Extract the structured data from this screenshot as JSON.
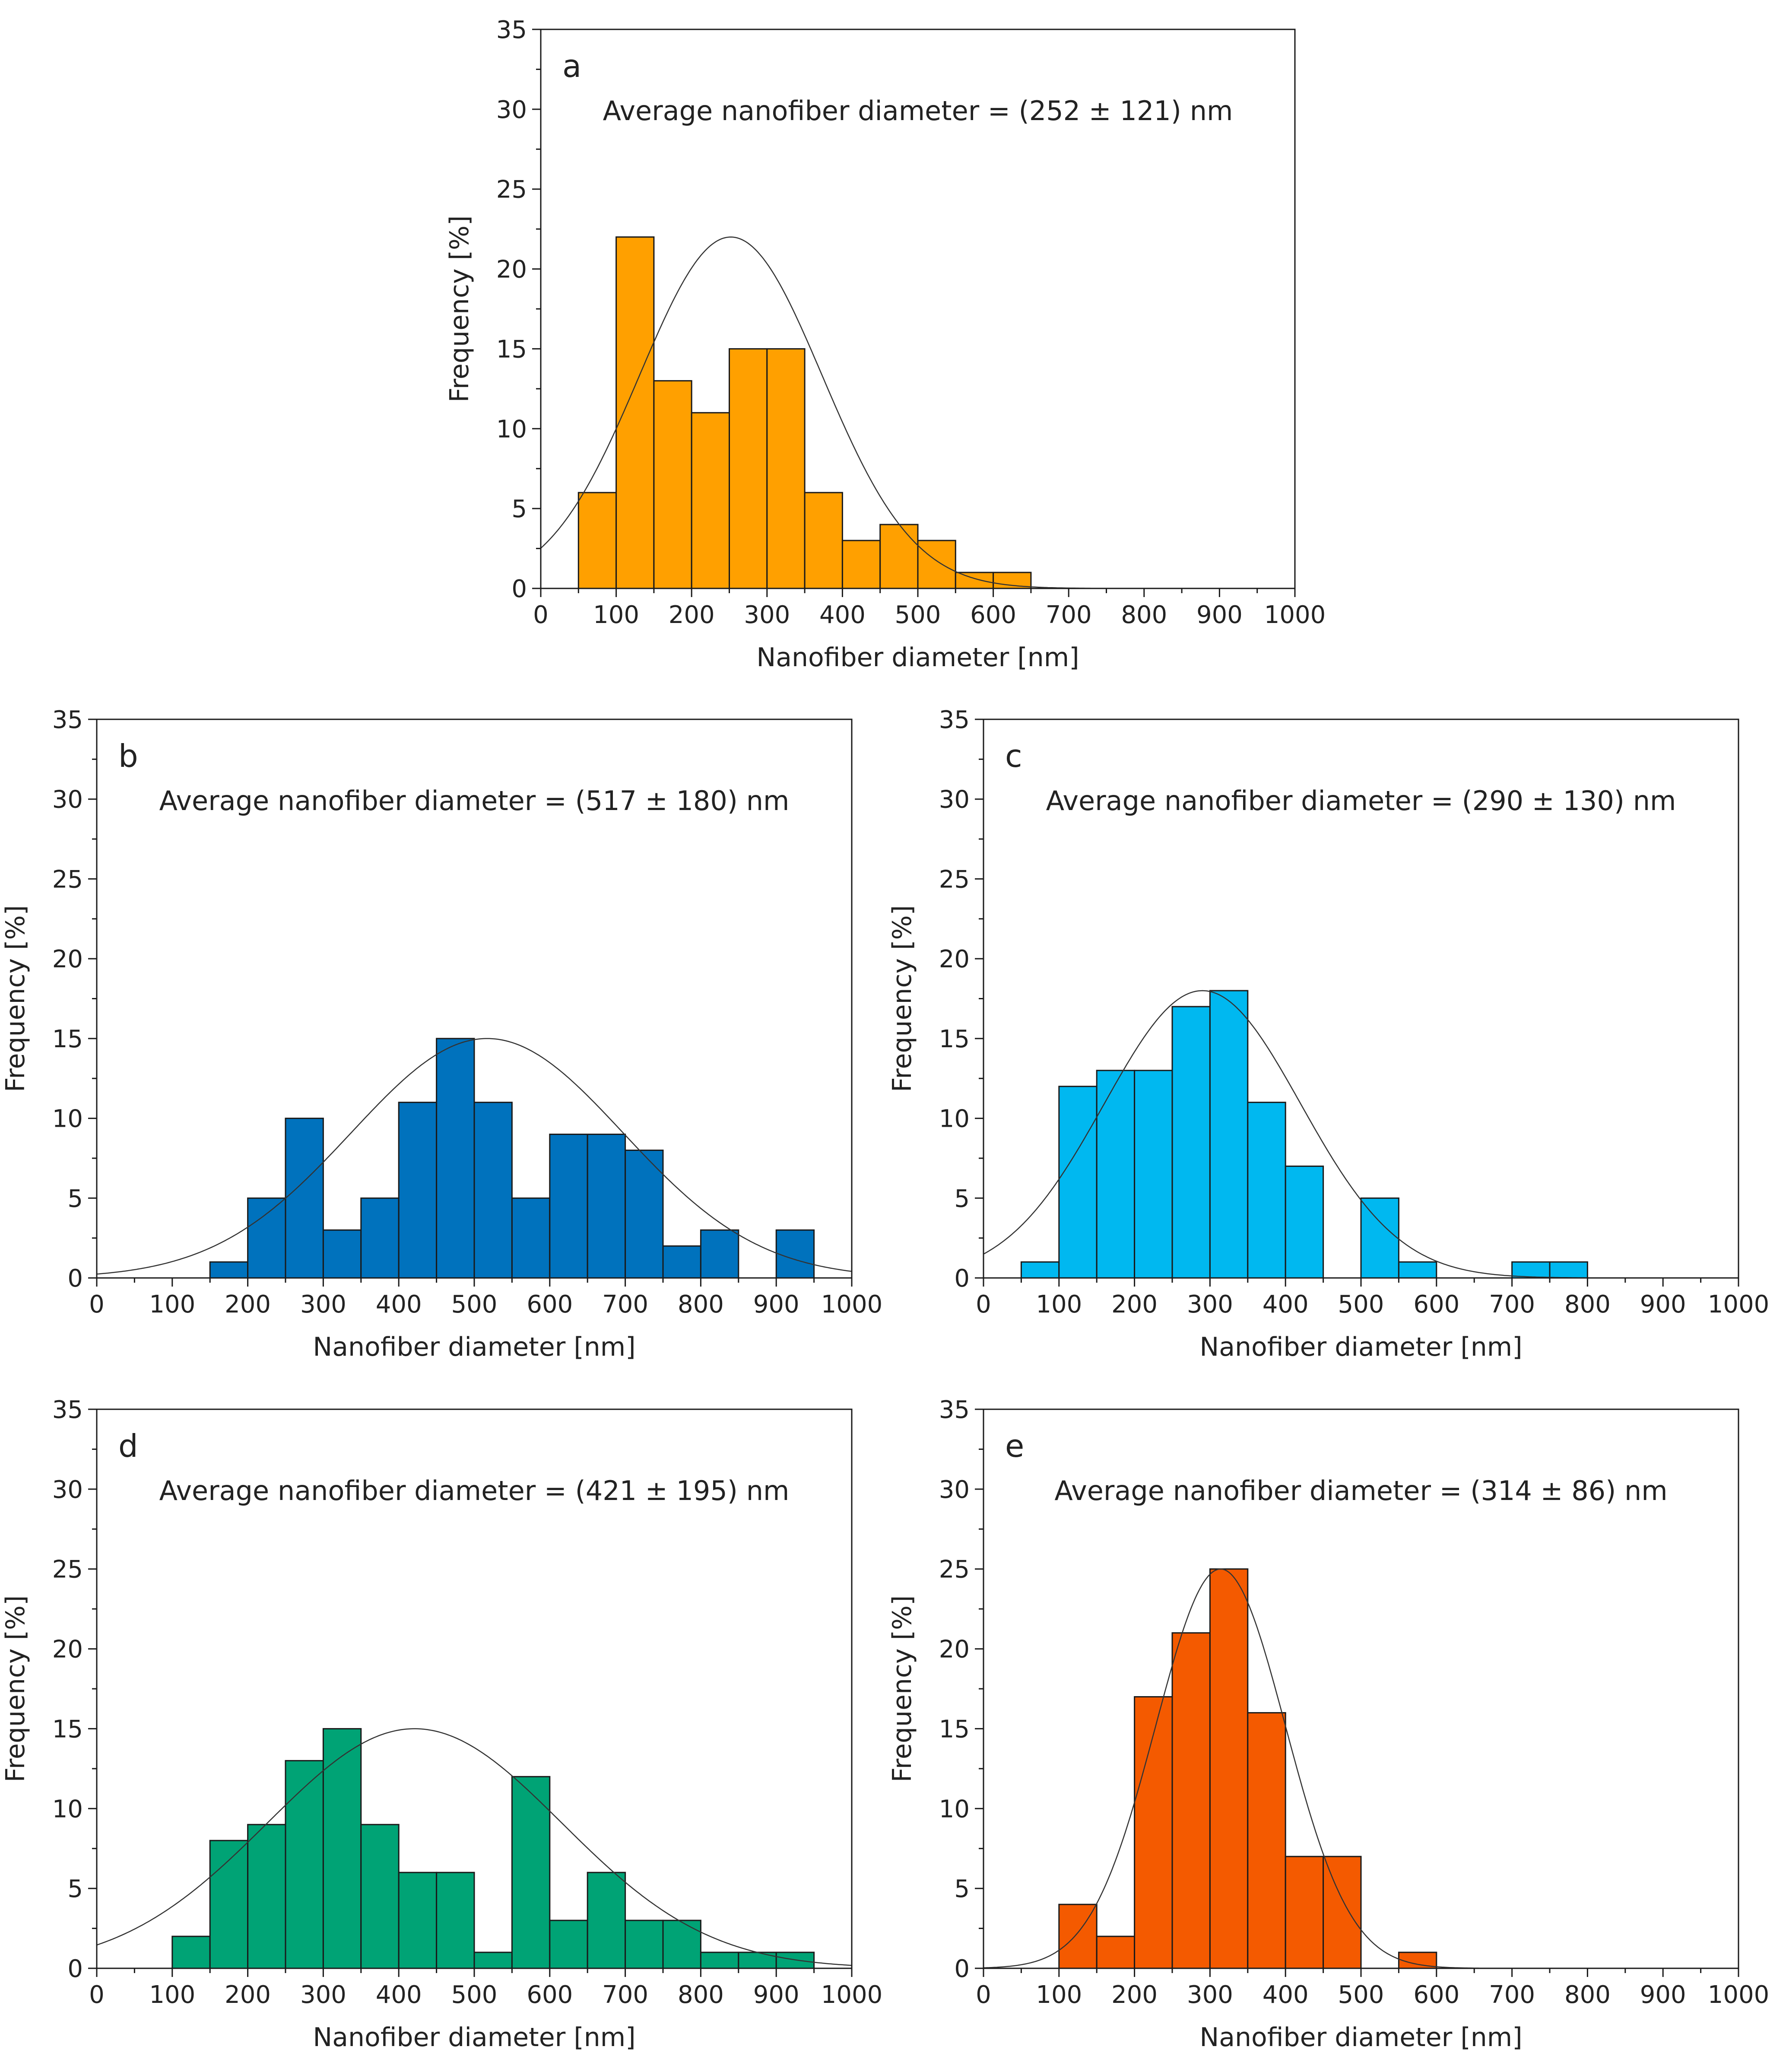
{
  "chart_data": [
    {
      "type": "bar",
      "panel": "a",
      "annotation": "Average nanofiber diameter = (252 ± 121) nm",
      "xlabel": "Nanofiber diameter [nm]",
      "ylabel": "Frequency [%]",
      "xlim": [
        0,
        1000
      ],
      "ylim": [
        0,
        35
      ],
      "xticks": [
        0,
        100,
        200,
        300,
        400,
        500,
        600,
        700,
        800,
        900,
        1000
      ],
      "yticks": [
        0,
        5,
        10,
        15,
        20,
        25,
        30,
        35
      ],
      "bin_width": 50,
      "bin_starts": [
        50,
        100,
        150,
        200,
        250,
        300,
        350,
        400,
        450,
        500,
        550,
        600
      ],
      "values": [
        6,
        22,
        13,
        11,
        15,
        15,
        6,
        3,
        4,
        3,
        1,
        1
      ],
      "color": "#FFA000",
      "fit": {
        "mean": 252,
        "sd": 121,
        "peak": 22
      }
    },
    {
      "type": "bar",
      "panel": "b",
      "annotation": "Average nanofiber diameter = (517 ± 180) nm",
      "xlabel": "Nanofiber diameter [nm]",
      "ylabel": "Frequency [%]",
      "xlim": [
        0,
        1000
      ],
      "ylim": [
        0,
        35
      ],
      "xticks": [
        0,
        100,
        200,
        300,
        400,
        500,
        600,
        700,
        800,
        900,
        1000
      ],
      "yticks": [
        0,
        5,
        10,
        15,
        20,
        25,
        30,
        35
      ],
      "bin_width": 50,
      "bin_starts": [
        150,
        200,
        250,
        300,
        350,
        400,
        450,
        500,
        550,
        600,
        650,
        700,
        750,
        800,
        850,
        900
      ],
      "values": [
        1,
        5,
        10,
        3,
        5,
        11,
        15,
        11,
        5,
        9,
        9,
        8,
        2,
        3,
        0,
        3
      ],
      "color": "#0072BD",
      "fit": {
        "mean": 517,
        "sd": 180,
        "peak": 15
      }
    },
    {
      "type": "bar",
      "panel": "c",
      "annotation": "Average nanofiber diameter = (290 ± 130) nm",
      "xlabel": "Nanofiber diameter [nm]",
      "ylabel": "Frequency [%]",
      "xlim": [
        0,
        1000
      ],
      "ylim": [
        0,
        35
      ],
      "xticks": [
        0,
        100,
        200,
        300,
        400,
        500,
        600,
        700,
        800,
        900,
        1000
      ],
      "yticks": [
        0,
        5,
        10,
        15,
        20,
        25,
        30,
        35
      ],
      "bin_width": 50,
      "bin_starts": [
        50,
        100,
        150,
        200,
        250,
        300,
        350,
        400,
        450,
        500,
        550,
        600,
        650,
        700,
        750
      ],
      "values": [
        1,
        12,
        13,
        13,
        17,
        18,
        11,
        7,
        0,
        5,
        1,
        0,
        0,
        1,
        1
      ],
      "color": "#00B8F0",
      "fit": {
        "mean": 290,
        "sd": 130,
        "peak": 18
      }
    },
    {
      "type": "bar",
      "panel": "d",
      "annotation": "Average nanofiber diameter = (421 ± 195) nm",
      "xlabel": "Nanofiber diameter [nm]",
      "ylabel": "Frequency [%]",
      "xlim": [
        0,
        1000
      ],
      "ylim": [
        0,
        35
      ],
      "xticks": [
        0,
        100,
        200,
        300,
        400,
        500,
        600,
        700,
        800,
        900,
        1000
      ],
      "yticks": [
        0,
        5,
        10,
        15,
        20,
        25,
        30,
        35
      ],
      "bin_width": 50,
      "bin_starts": [
        100,
        150,
        200,
        250,
        300,
        350,
        400,
        450,
        500,
        550,
        600,
        650,
        700,
        750,
        800,
        850,
        900
      ],
      "values": [
        2,
        8,
        9,
        13,
        15,
        9,
        6,
        6,
        1,
        12,
        3,
        6,
        3,
        3,
        1,
        1,
        1
      ],
      "color": "#00A375",
      "fit": {
        "mean": 421,
        "sd": 195,
        "peak": 15
      }
    },
    {
      "type": "bar",
      "panel": "e",
      "annotation": "Average nanofiber diameter = (314 ± 86) nm",
      "xlabel": "Nanofiber diameter [nm]",
      "ylabel": "Frequency [%]",
      "xlim": [
        0,
        1000
      ],
      "ylim": [
        0,
        35
      ],
      "xticks": [
        0,
        100,
        200,
        300,
        400,
        500,
        600,
        700,
        800,
        900,
        1000
      ],
      "yticks": [
        0,
        5,
        10,
        15,
        20,
        25,
        30,
        35
      ],
      "bin_width": 50,
      "bin_starts": [
        100,
        150,
        200,
        250,
        300,
        350,
        400,
        450,
        500,
        550
      ],
      "values": [
        4,
        2,
        17,
        21,
        25,
        16,
        7,
        7,
        0,
        1
      ],
      "color": "#F45A00",
      "fit": {
        "mean": 314,
        "sd": 86,
        "peak": 25
      }
    }
  ]
}
